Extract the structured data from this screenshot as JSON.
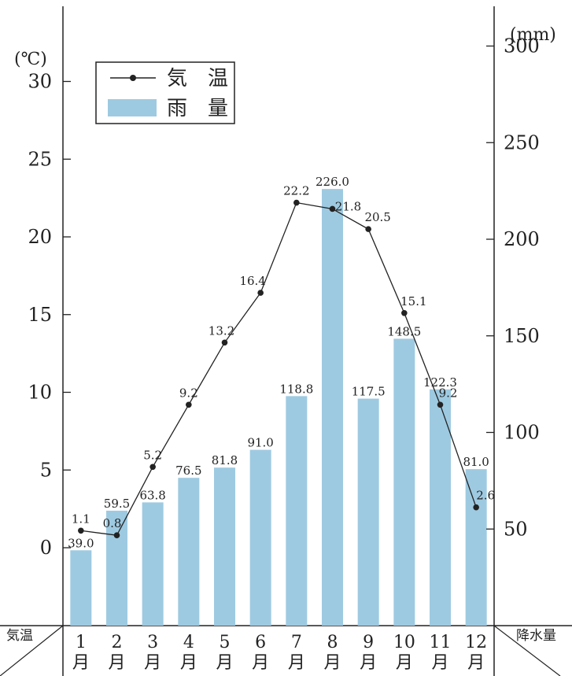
{
  "chart_data": {
    "type": "bar-line",
    "categories": [
      "1\n月",
      "2\n月",
      "3\n月",
      "4\n月",
      "5\n月",
      "6\n月",
      "7\n月",
      "8\n月",
      "9\n月",
      "10\n月",
      "11\n月",
      "12\n月"
    ],
    "months": [
      "1",
      "2",
      "3",
      "4",
      "5",
      "6",
      "7",
      "8",
      "9",
      "10",
      "11",
      "12"
    ],
    "month_suffix": "月",
    "temperature": {
      "name": "気温",
      "values": [
        1.1,
        0.8,
        5.2,
        9.2,
        13.2,
        16.4,
        22.2,
        21.8,
        20.5,
        15.1,
        9.2,
        2.6
      ],
      "labels": [
        "1.1",
        "0.8",
        "5.2",
        "9.2",
        "13.2",
        "16.4",
        "22.2",
        "21.8",
        "20.5",
        "15.1",
        "9.2",
        "2.6"
      ],
      "color": "#222222"
    },
    "precipitation": {
      "name": "雨量",
      "values": [
        39.0,
        59.5,
        63.8,
        76.5,
        81.8,
        91.0,
        118.8,
        226.0,
        117.5,
        148.5,
        122.3,
        81.0
      ],
      "labels": [
        "39.0",
        "59.5",
        "63.8",
        "76.5",
        "81.8",
        "91.0",
        "118.8",
        "226.0",
        "117.5",
        "148.5",
        "122.3",
        "81.0"
      ],
      "color": "#9ecae1"
    },
    "left_axis": {
      "unit": "(℃)",
      "ticks": [
        0,
        5,
        10,
        15,
        20,
        25,
        30
      ],
      "tick_labels": [
        "0",
        "5",
        "10",
        "15",
        "20",
        "25",
        "30"
      ],
      "range": [
        -5,
        35
      ]
    },
    "right_axis": {
      "unit": "(mm)",
      "ticks": [
        50,
        100,
        150,
        200,
        250,
        300
      ],
      "tick_labels": [
        "50",
        "100",
        "150",
        "200",
        "250",
        "300"
      ],
      "range": [
        0,
        330
      ]
    },
    "corner_left": "気温",
    "corner_right": "降水量",
    "legend": {
      "temperature_label": "気　温",
      "precipitation_label": "雨　量",
      "placement": "top-left"
    },
    "grid": false
  }
}
